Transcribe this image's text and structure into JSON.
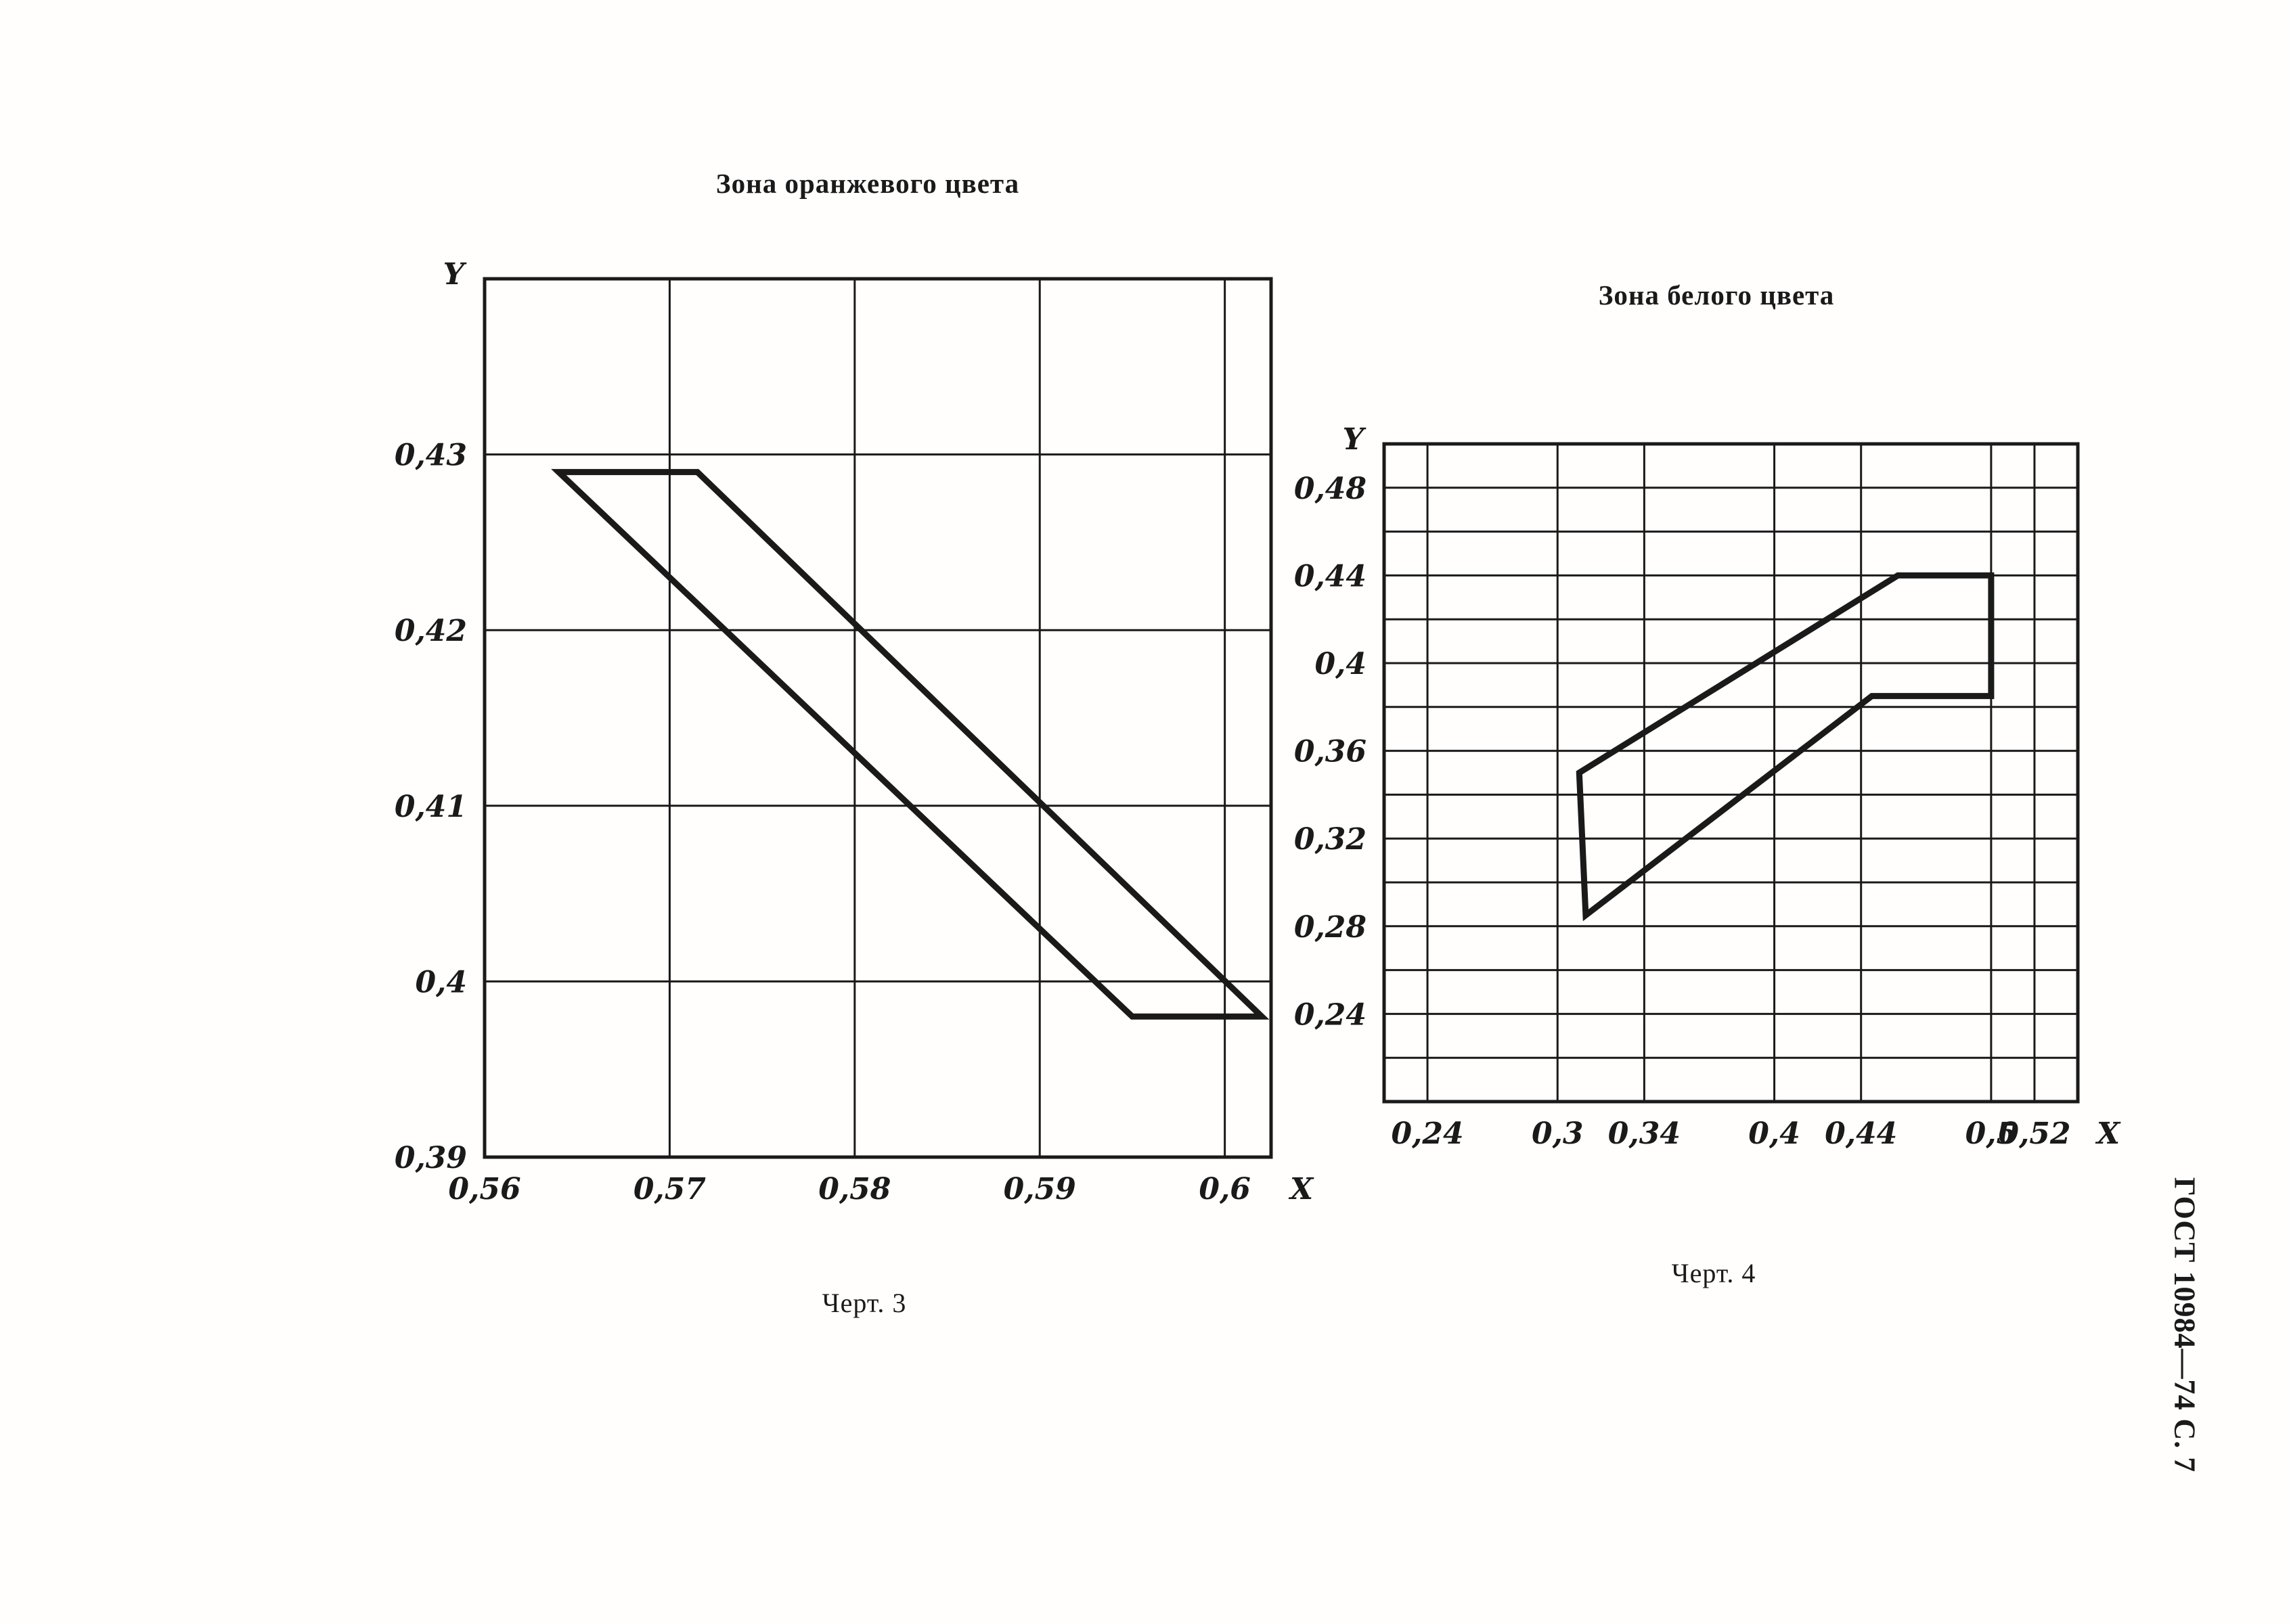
{
  "page": {
    "side_note": "ГОСТ 10984—74 С. 7",
    "ink_color": "#1a1a1a",
    "paper_color": "#fffefd"
  },
  "chart_data": [
    {
      "type": "line",
      "title": "Зона оранжевого цвета",
      "caption": "Черт. 3",
      "xlabel": "X",
      "ylabel": "Y",
      "xlim": [
        0.56,
        0.6025
      ],
      "ylim": [
        0.39,
        0.44
      ],
      "grid": true,
      "legend": "none",
      "x_gridlines": [
        0.57,
        0.58,
        0.59,
        0.6
      ],
      "y_gridlines": [
        0.4,
        0.41,
        0.42,
        0.43
      ],
      "x_tick_labels": [
        {
          "v": 0.56,
          "label": "0,56"
        },
        {
          "v": 0.57,
          "label": "0,57"
        },
        {
          "v": 0.58,
          "label": "0,58"
        },
        {
          "v": 0.59,
          "label": "0,59"
        },
        {
          "v": 0.6,
          "label": "0,6"
        }
      ],
      "y_tick_labels": [
        {
          "v": 0.43,
          "label": "0,43"
        },
        {
          "v": 0.42,
          "label": "0,42"
        },
        {
          "v": 0.41,
          "label": "0,41"
        },
        {
          "v": 0.4,
          "label": "0,4"
        },
        {
          "v": 0.39,
          "label": "0,39"
        }
      ],
      "series": [
        {
          "name": "зона оранжевого цвета",
          "closed": true,
          "points": [
            [
              0.564,
              0.429
            ],
            [
              0.5715,
              0.429
            ],
            [
              0.602,
              0.398
            ],
            [
              0.595,
              0.398
            ]
          ]
        }
      ]
    },
    {
      "type": "line",
      "title": "Зона белого цвета",
      "caption": "Черт. 4",
      "xlabel": "X",
      "ylabel": "Y",
      "xlim": [
        0.22,
        0.54
      ],
      "ylim": [
        0.2,
        0.5
      ],
      "grid": true,
      "legend": "none",
      "x_gridlines": [
        0.24,
        0.3,
        0.34,
        0.4,
        0.44,
        0.5,
        0.52
      ],
      "y_gridlines": [
        0.22,
        0.24,
        0.26,
        0.28,
        0.3,
        0.32,
        0.34,
        0.36,
        0.38,
        0.4,
        0.42,
        0.44,
        0.46,
        0.48
      ],
      "x_tick_labels": [
        {
          "v": 0.24,
          "label": "0,24"
        },
        {
          "v": 0.3,
          "label": "0,3"
        },
        {
          "v": 0.34,
          "label": "0,34"
        },
        {
          "v": 0.4,
          "label": "0,4"
        },
        {
          "v": 0.44,
          "label": "0,44"
        },
        {
          "v": 0.5,
          "label": "0,5"
        },
        {
          "v": 0.52,
          "label": "0,52"
        }
      ],
      "y_tick_labels": [
        {
          "v": 0.48,
          "label": "0,48"
        },
        {
          "v": 0.44,
          "label": "0,44"
        },
        {
          "v": 0.4,
          "label": "0,4"
        },
        {
          "v": 0.36,
          "label": "0,36"
        },
        {
          "v": 0.32,
          "label": "0,32"
        },
        {
          "v": 0.28,
          "label": "0,28"
        },
        {
          "v": 0.24,
          "label": "0,24"
        }
      ],
      "series": [
        {
          "name": "зона белого цвета",
          "closed": true,
          "points": [
            [
              0.31,
              0.35
            ],
            [
              0.457,
              0.44
            ],
            [
              0.5,
              0.44
            ],
            [
              0.5,
              0.385
            ],
            [
              0.445,
              0.385
            ],
            [
              0.313,
              0.285
            ]
          ]
        }
      ]
    }
  ]
}
